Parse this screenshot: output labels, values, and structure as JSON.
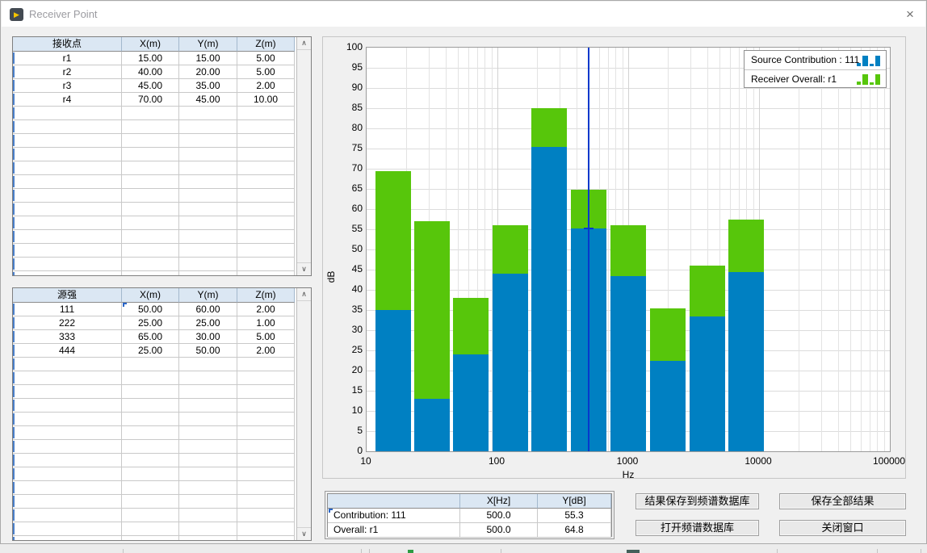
{
  "window": {
    "title": "Receiver Point"
  },
  "icons": {
    "close": "×",
    "run_arrow": "▶",
    "scroll_up": "∧",
    "scroll_down": "∨"
  },
  "receiver_table": {
    "headers": [
      "接收点",
      "X(m)",
      "Y(m)",
      "Z(m)"
    ],
    "rows": [
      [
        "r1",
        "15.00",
        "15.00",
        "5.00"
      ],
      [
        "r2",
        "40.00",
        "20.00",
        "5.00"
      ],
      [
        "r3",
        "45.00",
        "35.00",
        "2.00"
      ],
      [
        "r4",
        "70.00",
        "45.00",
        "10.00"
      ]
    ]
  },
  "source_table": {
    "headers": [
      "源强",
      "X(m)",
      "Y(m)",
      "Z(m)"
    ],
    "rows": [
      [
        "111",
        "50.00",
        "60.00",
        "2.00"
      ],
      [
        "222",
        "25.00",
        "25.00",
        "1.00"
      ],
      [
        "333",
        "65.00",
        "30.00",
        "5.00"
      ],
      [
        "444",
        "25.00",
        "50.00",
        "2.00"
      ]
    ]
  },
  "chart_data": {
    "type": "bar",
    "x_scale": "log",
    "x_min": 10,
    "x_max": 100000,
    "x_tick_labels": [
      "10",
      "100",
      "1000",
      "10000",
      "100000"
    ],
    "xlabel": "Hz",
    "ylabel": "dB",
    "ylim": [
      0,
      100
    ],
    "y_tick_step": 5,
    "grid": true,
    "legend_position": "top-right",
    "categories_hz": [
      16,
      31.5,
      63,
      125,
      250,
      500,
      1000,
      2000,
      4000,
      8000
    ],
    "series": [
      {
        "name": "Source Contribution : 111",
        "color": "#0080c2",
        "values": [
          35,
          13,
          24,
          44,
          75.5,
          55.3,
          43.5,
          22.5,
          33.5,
          44.5
        ]
      },
      {
        "name": "Receiver Overall: r1",
        "color": "#57c60b",
        "values": [
          69.5,
          57,
          38,
          56,
          85,
          64.8,
          56,
          35.5,
          46,
          57.5
        ]
      }
    ],
    "cursor": {
      "x_hz": 500,
      "series_y": [
        55.3,
        64.8
      ],
      "color": "#0639cc"
    }
  },
  "cursor_table": {
    "headers": [
      "",
      "X[Hz]",
      "Y[dB]"
    ],
    "rows": [
      [
        "Contribution: 111",
        "500.0",
        "55.3"
      ],
      [
        "Overall: r1",
        "500.0",
        "64.8"
      ]
    ]
  },
  "buttons": {
    "save_to_db": "结果保存到频谱数据库",
    "save_all": "保存全部结果",
    "open_db": "打开频谱数据库",
    "close_window": "关闭窗口"
  }
}
